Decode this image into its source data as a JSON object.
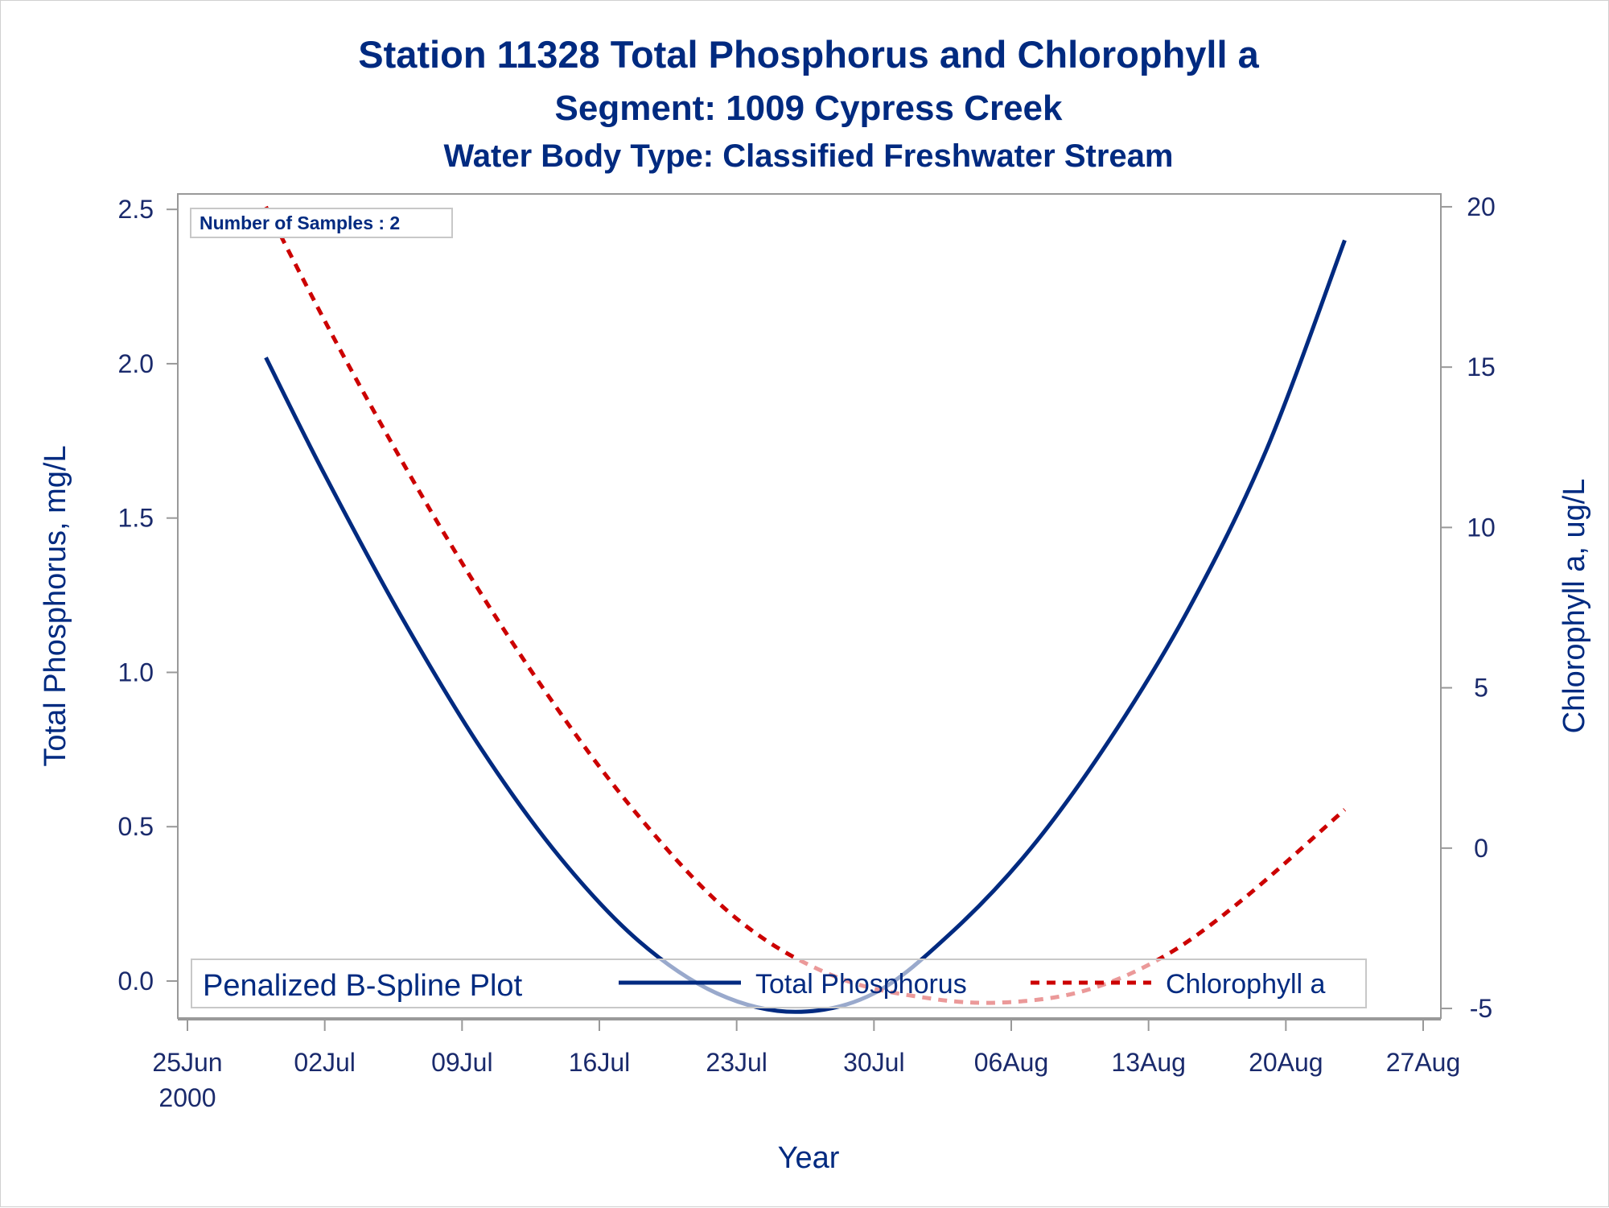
{
  "chart_data": {
    "type": "line",
    "title": "Station 11328  Total Phosphorus and Chlorophyll a",
    "subtitle": "Segment: 1009  Cypress Creek",
    "subtitle2": "Water Body Type: Classified Freshwater Stream",
    "xlabel": "Year",
    "ylabel": "Total Phosphorus, mg/L",
    "y2label": "Chlorophyll a, ug/L",
    "inset_text": "Number of Samples : 2",
    "x_tick_labels": [
      "25Jun",
      "02Jul",
      "09Jul",
      "16Jul",
      "23Jul",
      "30Jul",
      "06Aug",
      "13Aug",
      "20Aug",
      "27Aug"
    ],
    "x_first_tick_year": "2000",
    "xlim": [
      "2000-06-25",
      "2000-08-27"
    ],
    "y_ticks": [
      "0.0",
      "0.5",
      "1.0",
      "1.5",
      "2.0",
      "2.5"
    ],
    "ylim": [
      -0.12,
      2.55
    ],
    "y2_ticks": [
      "-5",
      "0",
      "5",
      "10",
      "15",
      "20"
    ],
    "y2lim": [
      -5.3,
      20.4
    ],
    "legend": {
      "title": "Penalized B-Spline Plot",
      "placement": "bottom-inside",
      "entries": [
        "Total Phosphorus",
        "Chlorophyll a"
      ]
    },
    "series": [
      {
        "name": "Total Phosphorus",
        "axis": "left",
        "color": "#002a80",
        "style": "solid",
        "x": [
          "2000-06-29",
          "2000-07-02",
          "2000-07-06",
          "2000-07-10",
          "2000-07-14",
          "2000-07-18",
          "2000-07-22",
          "2000-07-26",
          "2000-07-30",
          "2000-08-03",
          "2000-08-07",
          "2000-08-11",
          "2000-08-15",
          "2000-08-19",
          "2000-08-23"
        ],
        "values": [
          2.02,
          1.64,
          1.17,
          0.75,
          0.4,
          0.13,
          -0.04,
          -0.1,
          -0.04,
          0.16,
          0.43,
          0.78,
          1.2,
          1.72,
          2.4
        ]
      },
      {
        "name": "Chlorophyll a",
        "axis": "right",
        "color": "#cc0000",
        "style": "dashed",
        "x": [
          "2000-06-29",
          "2000-07-03",
          "2000-07-08",
          "2000-07-13",
          "2000-07-18",
          "2000-07-23",
          "2000-07-28",
          "2000-08-02",
          "2000-08-06",
          "2000-08-10",
          "2000-08-14",
          "2000-08-18",
          "2000-08-23"
        ],
        "values": [
          20.0,
          15.3,
          9.9,
          5.1,
          1.0,
          -2.2,
          -4.0,
          -4.7,
          -4.8,
          -4.4,
          -3.3,
          -1.5,
          1.2
        ]
      }
    ]
  }
}
